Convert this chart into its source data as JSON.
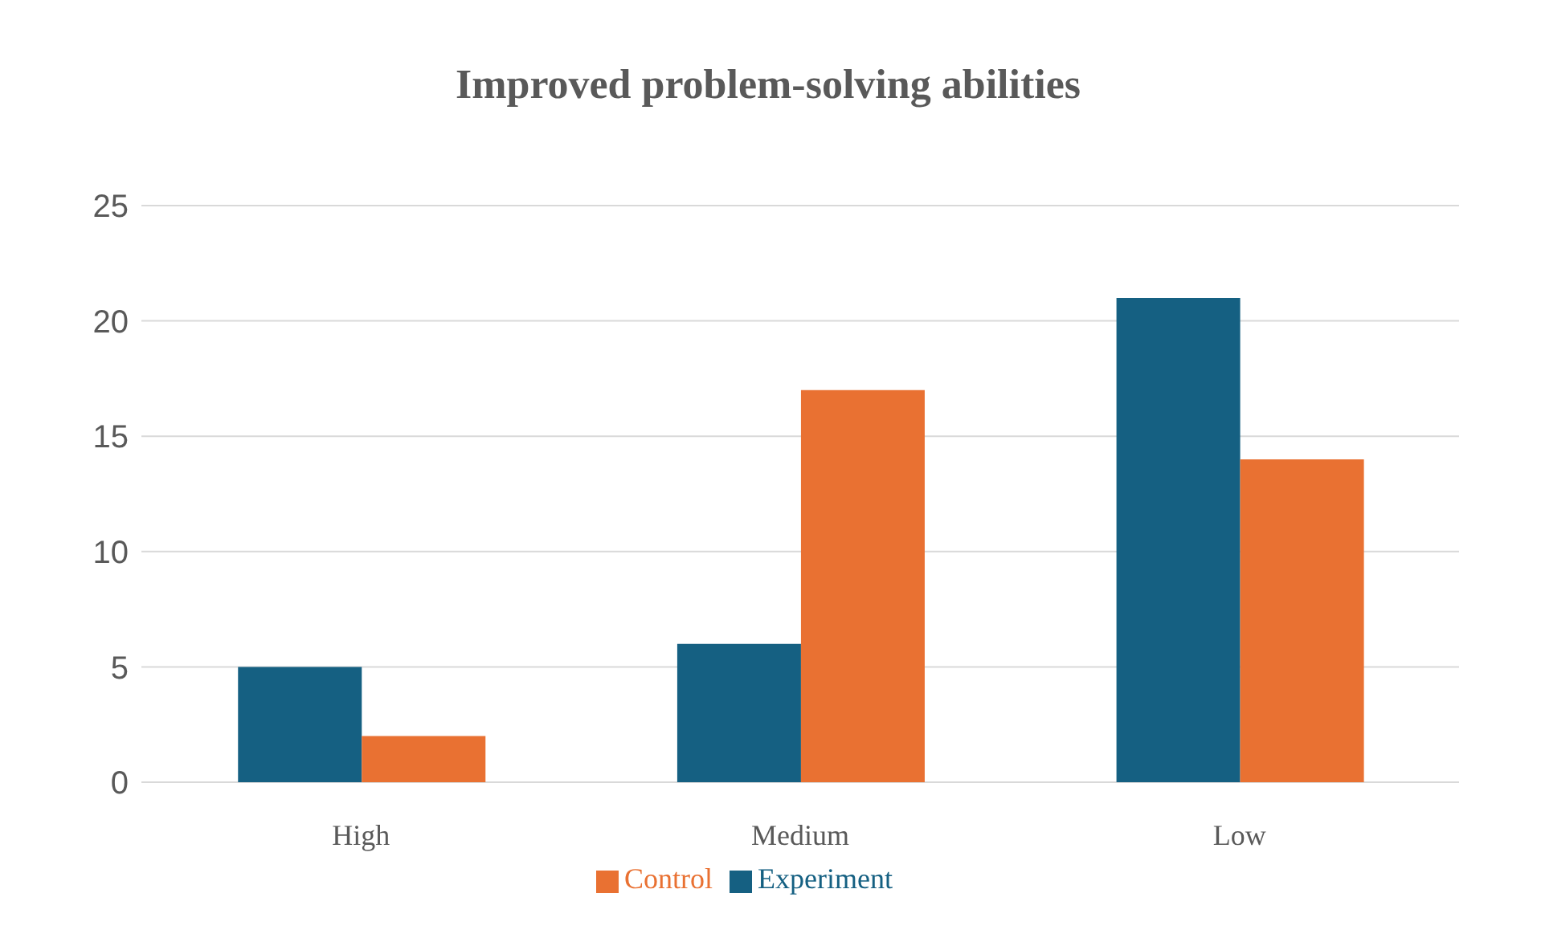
{
  "chart_data": {
    "type": "bar",
    "title": "Improved problem-solving abilities",
    "categories": [
      "High",
      "Medium",
      "Low"
    ],
    "series": [
      {
        "name": "Experiment",
        "color": "#156082",
        "values": [
          5,
          6,
          21
        ]
      },
      {
        "name": "Control",
        "color": "#e97132",
        "values": [
          2,
          17,
          14
        ]
      }
    ],
    "ylim": [
      0,
      25
    ],
    "yticks": [
      0,
      5,
      10,
      15,
      20,
      25
    ],
    "grid": "y",
    "legend": "bottom"
  }
}
